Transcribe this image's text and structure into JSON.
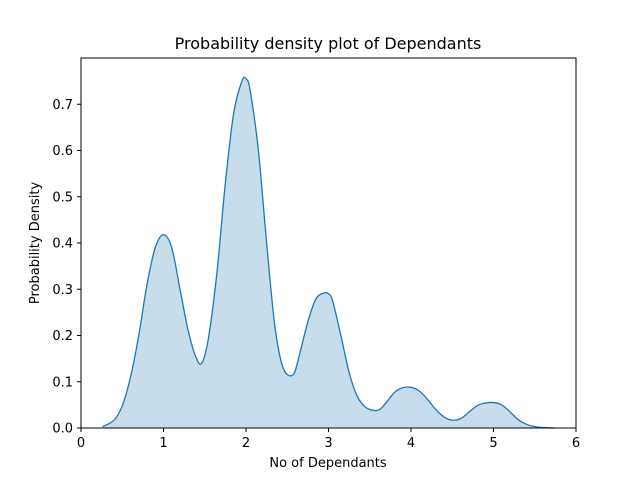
{
  "chart_data": {
    "type": "area",
    "title": "Probability density plot of Dependants",
    "xlabel": "No of Dependants",
    "ylabel": "Probability Density",
    "xlim": [
      0,
      6
    ],
    "ylim": [
      0,
      0.8
    ],
    "x_ticks": [
      "0",
      "1",
      "2",
      "3",
      "4",
      "5",
      "6"
    ],
    "y_ticks": [
      "0.0",
      "0.1",
      "0.2",
      "0.3",
      "0.4",
      "0.5",
      "0.6",
      "0.7"
    ],
    "grid": false,
    "legend": "none",
    "colors": {
      "line": "#1f77b4",
      "fill": "#1f77b4"
    },
    "series": [
      {
        "x": [
          0.26,
          0.4,
          0.5,
          0.6,
          0.7,
          0.8,
          0.9,
          1.0,
          1.1,
          1.2,
          1.3,
          1.4,
          1.47,
          1.55,
          1.65,
          1.75,
          1.85,
          1.95,
          2.0,
          2.05,
          2.15,
          2.25,
          2.35,
          2.45,
          2.57,
          2.65,
          2.75,
          2.85,
          2.95,
          3.0,
          3.05,
          3.15,
          3.25,
          3.35,
          3.45,
          3.55,
          3.62,
          3.7,
          3.8,
          3.9,
          4.0,
          4.1,
          4.2,
          4.3,
          4.4,
          4.5,
          4.6,
          4.7,
          4.8,
          4.9,
          5.0,
          5.1,
          5.2,
          5.3,
          5.4,
          5.5,
          5.6,
          5.74
        ],
        "y": [
          0.003,
          0.017,
          0.048,
          0.11,
          0.2,
          0.31,
          0.39,
          0.418,
          0.39,
          0.3,
          0.21,
          0.15,
          0.142,
          0.2,
          0.34,
          0.53,
          0.68,
          0.75,
          0.755,
          0.73,
          0.6,
          0.4,
          0.22,
          0.13,
          0.115,
          0.16,
          0.23,
          0.28,
          0.292,
          0.29,
          0.275,
          0.2,
          0.12,
          0.068,
          0.045,
          0.038,
          0.04,
          0.055,
          0.077,
          0.087,
          0.088,
          0.08,
          0.062,
          0.04,
          0.024,
          0.017,
          0.02,
          0.034,
          0.048,
          0.054,
          0.055,
          0.05,
          0.035,
          0.018,
          0.008,
          0.003,
          0.001,
          0.0
        ]
      }
    ]
  }
}
